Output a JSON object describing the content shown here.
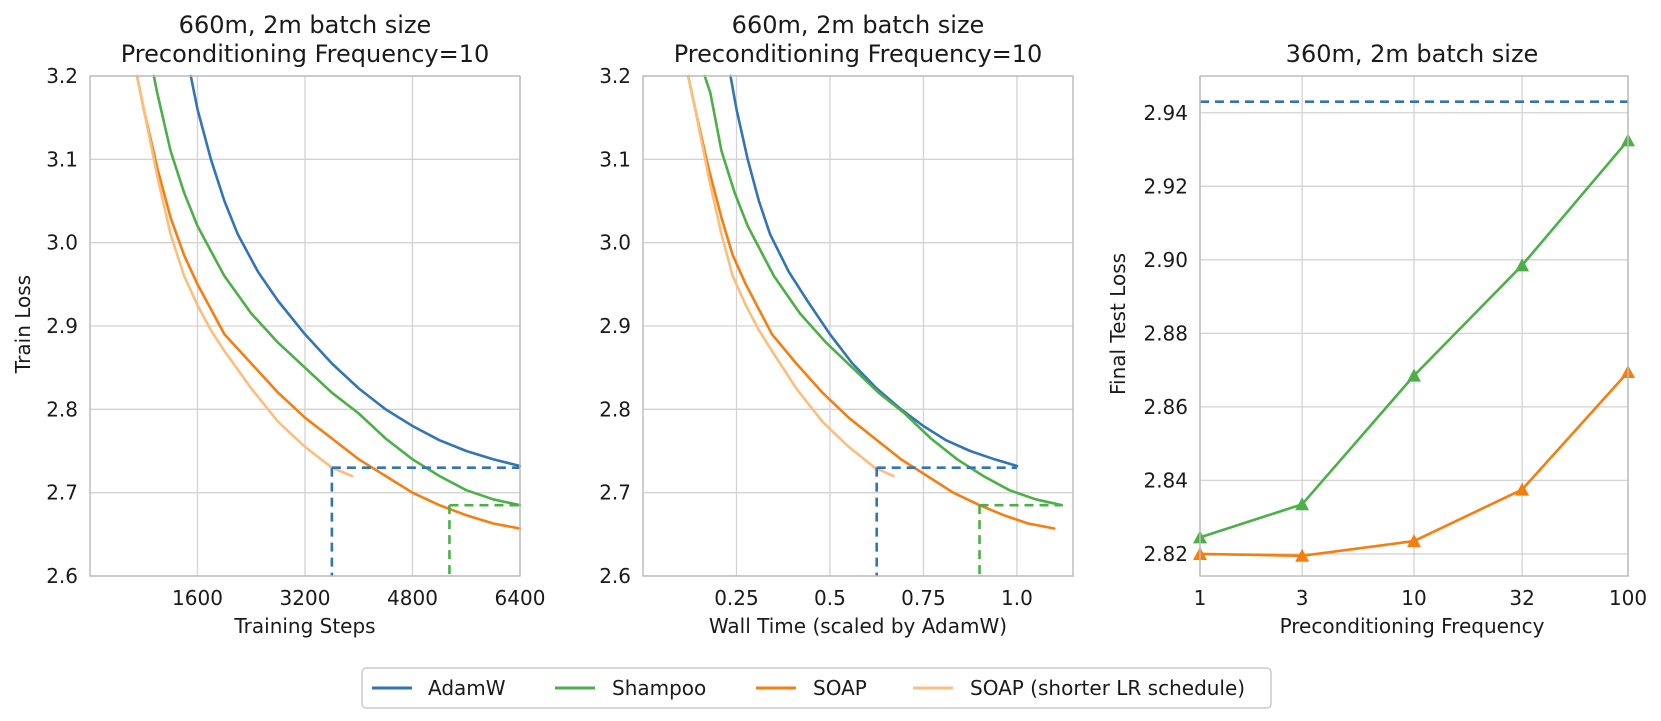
{
  "colors": {
    "adamw": "#3274b5",
    "shampoo": "#4caf48",
    "soap": "#f57e10",
    "soap_short": "#fbbe7d",
    "grid": "#d3d3d3",
    "axis": "#bdbdbd"
  },
  "legend": {
    "items": [
      {
        "label": "AdamW",
        "color": "#3274b5"
      },
      {
        "label": "Shampoo",
        "color": "#4caf48"
      },
      {
        "label": "SOAP",
        "color": "#f57e10"
      },
      {
        "label": "SOAP (shorter LR schedule)",
        "color": "#fbbe7d"
      }
    ]
  },
  "chart_data": [
    {
      "type": "line",
      "title": [
        "660m, 2m batch size",
        "Preconditioning Frequency=10"
      ],
      "xlabel": "Training Steps",
      "ylabel": "Train Loss",
      "xlim": [
        0,
        6400
      ],
      "ylim": [
        2.6,
        3.2
      ],
      "xticks": [
        1600,
        3200,
        4800,
        6400
      ],
      "xticklabels": [
        "1600",
        "3200",
        "4800",
        "6400"
      ],
      "yticks": [
        2.6,
        2.7,
        2.8,
        2.9,
        3.0,
        3.1,
        3.2
      ],
      "yticklabels": [
        "2.6",
        "2.7",
        "2.8",
        "2.9",
        "3.0",
        "3.1",
        "3.2"
      ],
      "series": [
        {
          "name": "AdamW",
          "color": "#3274b5",
          "x": [
            1500,
            1600,
            1800,
            2000,
            2200,
            2500,
            2800,
            3200,
            3600,
            4000,
            4400,
            4800,
            5200,
            5600,
            6000,
            6400
          ],
          "y": [
            3.2,
            3.16,
            3.1,
            3.05,
            3.01,
            2.965,
            2.93,
            2.89,
            2.855,
            2.825,
            2.8,
            2.78,
            2.763,
            2.75,
            2.74,
            2.732
          ]
        },
        {
          "name": "Shampoo",
          "color": "#4caf48",
          "x": [
            950,
            1000,
            1200,
            1400,
            1600,
            1800,
            2000,
            2400,
            2800,
            3200,
            3600,
            4000,
            4400,
            4800,
            5200,
            5600,
            6000,
            6400
          ],
          "y": [
            3.2,
            3.18,
            3.11,
            3.06,
            3.02,
            2.99,
            2.96,
            2.915,
            2.88,
            2.85,
            2.82,
            2.795,
            2.765,
            2.74,
            2.72,
            2.703,
            2.692,
            2.685
          ]
        },
        {
          "name": "SOAP",
          "color": "#f57e10",
          "x": [
            700,
            800,
            1000,
            1200,
            1400,
            1600,
            2000,
            2400,
            2800,
            3200,
            3600,
            4000,
            4400,
            4800,
            5200,
            5600,
            6000,
            6400
          ],
          "y": [
            3.2,
            3.16,
            3.09,
            3.03,
            2.985,
            2.95,
            2.89,
            2.855,
            2.82,
            2.79,
            2.765,
            2.74,
            2.72,
            2.7,
            2.685,
            2.673,
            2.663,
            2.657
          ]
        },
        {
          "name": "SOAP (shorter LR schedule)",
          "color": "#fbbe7d",
          "x": [
            700,
            800,
            1000,
            1200,
            1400,
            1600,
            1800,
            2000,
            2400,
            2800,
            3200,
            3600,
            3900
          ],
          "y": [
            3.2,
            3.16,
            3.08,
            3.01,
            2.96,
            2.925,
            2.895,
            2.87,
            2.825,
            2.785,
            2.755,
            2.73,
            2.72
          ]
        }
      ],
      "reference_lines": [
        {
          "color": "#3274b5",
          "y": 2.73,
          "x_from": 3600,
          "x_to": 6400
        },
        {
          "color": "#4caf48",
          "y": 2.685,
          "x_from": 5350,
          "x_to": 6400
        }
      ]
    },
    {
      "type": "line",
      "title": [
        "660m, 2m batch size",
        "Preconditioning Frequency=10"
      ],
      "xlabel": "Wall Time (scaled by AdamW)",
      "ylabel": "",
      "xlim": [
        0,
        1.15
      ],
      "ylim": [
        2.6,
        3.2
      ],
      "xticks": [
        0.25,
        0.5,
        0.75,
        1.0
      ],
      "xticklabels": [
        "0.25",
        "0.5",
        "0.75",
        "1.0"
      ],
      "yticks": [
        2.6,
        2.7,
        2.8,
        2.9,
        3.0,
        3.1,
        3.2
      ],
      "yticklabels": [
        "2.6",
        "2.7",
        "2.8",
        "2.9",
        "3.0",
        "3.1",
        "3.2"
      ],
      "series": [
        {
          "name": "AdamW",
          "color": "#3274b5",
          "x": [
            0.234,
            0.25,
            0.28,
            0.31,
            0.34,
            0.39,
            0.44,
            0.5,
            0.56,
            0.625,
            0.69,
            0.75,
            0.81,
            0.875,
            0.94,
            1.0
          ],
          "y": [
            3.2,
            3.16,
            3.1,
            3.05,
            3.01,
            2.965,
            2.93,
            2.89,
            2.855,
            2.825,
            2.8,
            2.78,
            2.763,
            2.75,
            2.74,
            2.732
          ]
        },
        {
          "name": "Shampoo",
          "color": "#4caf48",
          "x": [
            0.165,
            0.18,
            0.21,
            0.245,
            0.28,
            0.315,
            0.35,
            0.42,
            0.49,
            0.56,
            0.63,
            0.7,
            0.77,
            0.84,
            0.91,
            0.98,
            1.05,
            1.12
          ],
          "y": [
            3.2,
            3.18,
            3.11,
            3.06,
            3.02,
            2.99,
            2.96,
            2.915,
            2.88,
            2.85,
            2.82,
            2.795,
            2.765,
            2.74,
            2.72,
            2.703,
            2.692,
            2.685
          ]
        },
        {
          "name": "SOAP",
          "color": "#f57e10",
          "x": [
            0.121,
            0.14,
            0.175,
            0.21,
            0.24,
            0.275,
            0.345,
            0.41,
            0.48,
            0.55,
            0.62,
            0.69,
            0.76,
            0.83,
            0.9,
            0.965,
            1.03,
            1.1
          ],
          "y": [
            3.2,
            3.16,
            3.09,
            3.03,
            2.985,
            2.95,
            2.89,
            2.855,
            2.82,
            2.79,
            2.765,
            2.74,
            2.72,
            2.7,
            2.685,
            2.673,
            2.663,
            2.657
          ]
        },
        {
          "name": "SOAP (shorter LR schedule)",
          "color": "#fbbe7d",
          "x": [
            0.121,
            0.14,
            0.175,
            0.21,
            0.24,
            0.275,
            0.31,
            0.345,
            0.41,
            0.48,
            0.55,
            0.62,
            0.67
          ],
          "y": [
            3.2,
            3.16,
            3.08,
            3.01,
            2.96,
            2.925,
            2.895,
            2.87,
            2.825,
            2.785,
            2.755,
            2.73,
            2.72
          ]
        }
      ],
      "reference_lines": [
        {
          "color": "#3274b5",
          "y": 2.73,
          "x_from": 0.625,
          "x_to": 1.0
        },
        {
          "color": "#4caf48",
          "y": 2.685,
          "x_from": 0.9,
          "x_to": 1.12
        }
      ]
    },
    {
      "type": "line",
      "title": [
        "360m, 2m batch size"
      ],
      "xlabel": "Preconditioning Frequency",
      "ylabel": "Final Test Loss",
      "xscale": "log",
      "xlim": [
        1,
        100
      ],
      "ylim": [
        2.814,
        2.95
      ],
      "xticks": [
        1,
        3,
        10,
        32,
        100
      ],
      "xticklabels": [
        "1",
        "3",
        "10",
        "32",
        "100"
      ],
      "yticks": [
        2.82,
        2.84,
        2.86,
        2.88,
        2.9,
        2.92,
        2.94
      ],
      "yticklabels": [
        "2.82",
        "2.84",
        "2.86",
        "2.88",
        "2.90",
        "2.92",
        "2.94"
      ],
      "series": [
        {
          "name": "Shampoo",
          "color": "#4caf48",
          "marker": "triangle",
          "x": [
            1,
            3,
            10,
            32,
            100
          ],
          "y": [
            2.8245,
            2.8335,
            2.8685,
            2.8985,
            2.9325
          ]
        },
        {
          "name": "SOAP",
          "color": "#f57e10",
          "marker": "triangle",
          "x": [
            1,
            3,
            10,
            32,
            100
          ],
          "y": [
            2.82,
            2.8195,
            2.8235,
            2.8375,
            2.8695
          ]
        }
      ],
      "reference_lines": [
        {
          "color": "#3274b5",
          "y": 2.943,
          "x_from": 1,
          "x_to": 100
        }
      ]
    }
  ]
}
